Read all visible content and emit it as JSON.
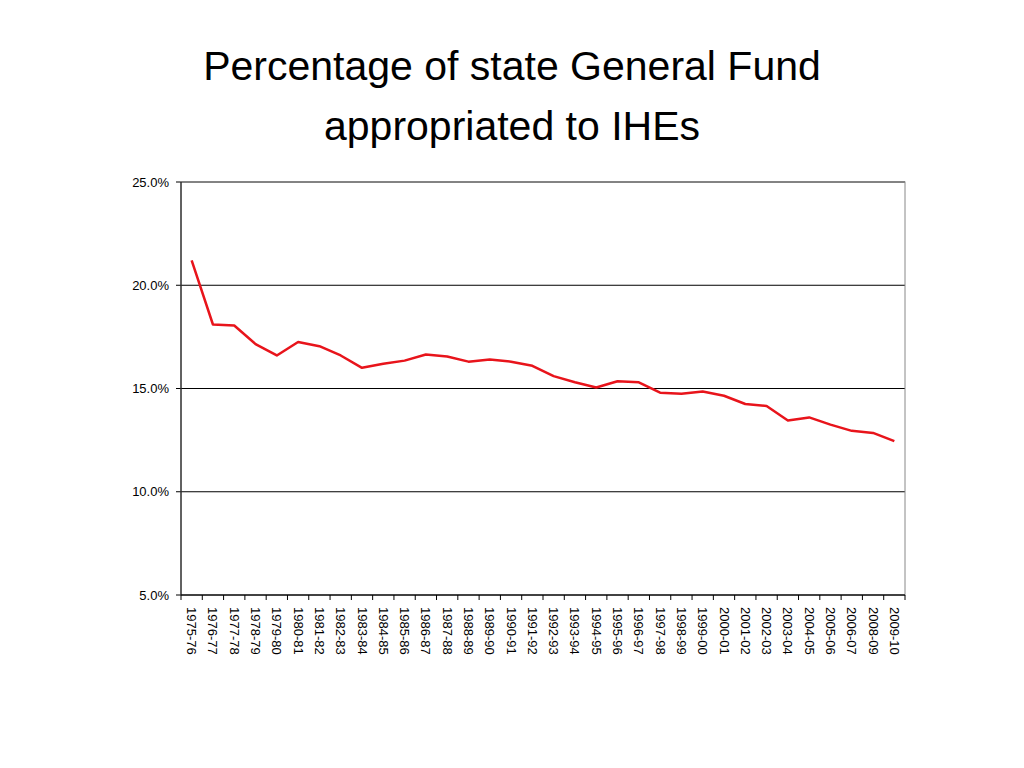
{
  "chart_data": {
    "type": "line",
    "title": "Percentage of state General Fund appropriated to IHEs",
    "categories": [
      "1975-76",
      "1976-77",
      "1977-78",
      "1978-79",
      "1979-80",
      "1980-81",
      "1981-82",
      "1982-83",
      "1983-84",
      "1984-85",
      "1985-86",
      "1986-87",
      "1987-88",
      "1988-89",
      "1989-90",
      "1990-91",
      "1991-92",
      "1992-93",
      "1993-94",
      "1994-95",
      "1995-96",
      "1996-97",
      "1997-98",
      "1998-99",
      "1999-00",
      "2000-01",
      "2001-02",
      "2002-03",
      "2003-04",
      "2004-05",
      "2005-06",
      "2006-07",
      "2008-09",
      "2009-10"
    ],
    "values": [
      21.2,
      18.1,
      18.05,
      17.15,
      16.6,
      17.25,
      17.05,
      16.6,
      16.0,
      16.2,
      16.35,
      16.65,
      16.55,
      16.3,
      16.4,
      16.3,
      16.1,
      15.6,
      15.3,
      15.05,
      15.35,
      15.3,
      14.8,
      14.75,
      14.85,
      14.65,
      14.25,
      14.15,
      13.45,
      13.6,
      13.25,
      12.95,
      12.85,
      12.45
    ],
    "color": "#e8141b",
    "ylim": [
      5,
      25
    ],
    "yticks": [
      {
        "value": 5,
        "label": "5.0%"
      },
      {
        "value": 10,
        "label": "10.0%"
      },
      {
        "value": 15,
        "label": "15.0%"
      },
      {
        "value": 20,
        "label": "20.0%"
      },
      {
        "value": 25,
        "label": "25.0%"
      }
    ],
    "grid": true
  }
}
